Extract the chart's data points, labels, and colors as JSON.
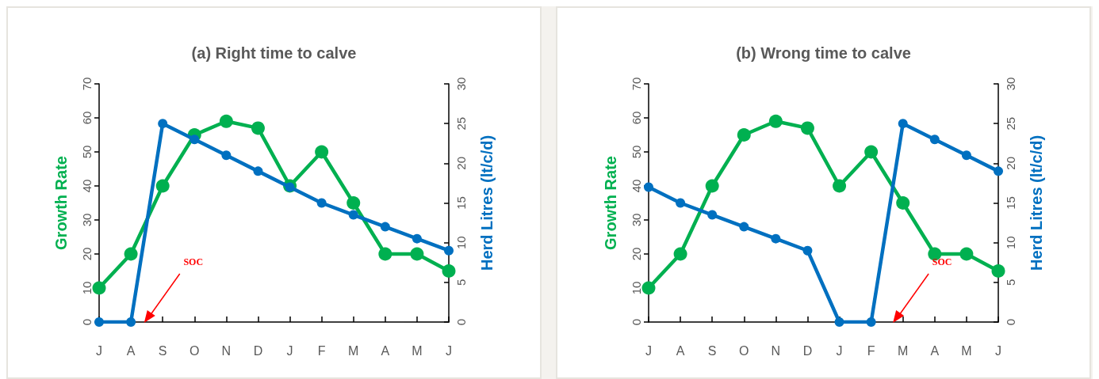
{
  "chart_data": [
    {
      "type": "line",
      "title": "(a) Right time to calve",
      "ylabel": "Growth Rate",
      "y2label": "Herd Litres (lt/c/d)",
      "categories": [
        "J",
        "A",
        "S",
        "O",
        "N",
        "D",
        "J",
        "F",
        "M",
        "A",
        "M",
        "J"
      ],
      "series": [
        {
          "color": "#00b050",
          "values": [
            10,
            20,
            40,
            55,
            59,
            57,
            40,
            50,
            35,
            20,
            20,
            15
          ]
        },
        {
          "color": "#0070c0",
          "axis": "y2",
          "values": [
            0,
            0,
            25,
            23,
            21,
            19,
            17,
            15,
            13.5,
            12,
            10.5,
            9
          ]
        }
      ],
      "ylim": [
        0,
        70
      ],
      "yticks": [
        0,
        10,
        20,
        30,
        40,
        50,
        60,
        70
      ],
      "y2lim": [
        0,
        30
      ],
      "y2ticks": [
        0,
        5,
        10,
        15,
        20,
        25,
        30
      ],
      "marker": "circle",
      "line_style": "solid",
      "grid": false,
      "annotations": [
        "SOC"
      ]
    },
    {
      "type": "line",
      "title": "(b) Wrong time to calve",
      "ylabel": "Growth Rate",
      "y2label": "Herd Litres (lt/c/d)",
      "categories": [
        "J",
        "A",
        "S",
        "O",
        "N",
        "D",
        "J",
        "F",
        "M",
        "A",
        "M",
        "J"
      ],
      "series": [
        {
          "color": "#00b050",
          "values": [
            10,
            20,
            40,
            55,
            59,
            57,
            40,
            50,
            35,
            20,
            20,
            15
          ]
        },
        {
          "color": "#0070c0",
          "axis": "y2",
          "values": [
            17,
            15,
            13.5,
            12,
            10.5,
            9,
            0,
            0,
            25,
            23,
            21,
            19
          ]
        }
      ],
      "ylim": [
        0,
        70
      ],
      "yticks": [
        0,
        10,
        20,
        30,
        40,
        50,
        60,
        70
      ],
      "y2lim": [
        0,
        30
      ],
      "y2ticks": [
        0,
        5,
        10,
        15,
        20,
        25,
        30
      ],
      "marker": "circle",
      "line_style": "solid",
      "grid": false,
      "annotations": [
        "SOC"
      ]
    }
  ]
}
